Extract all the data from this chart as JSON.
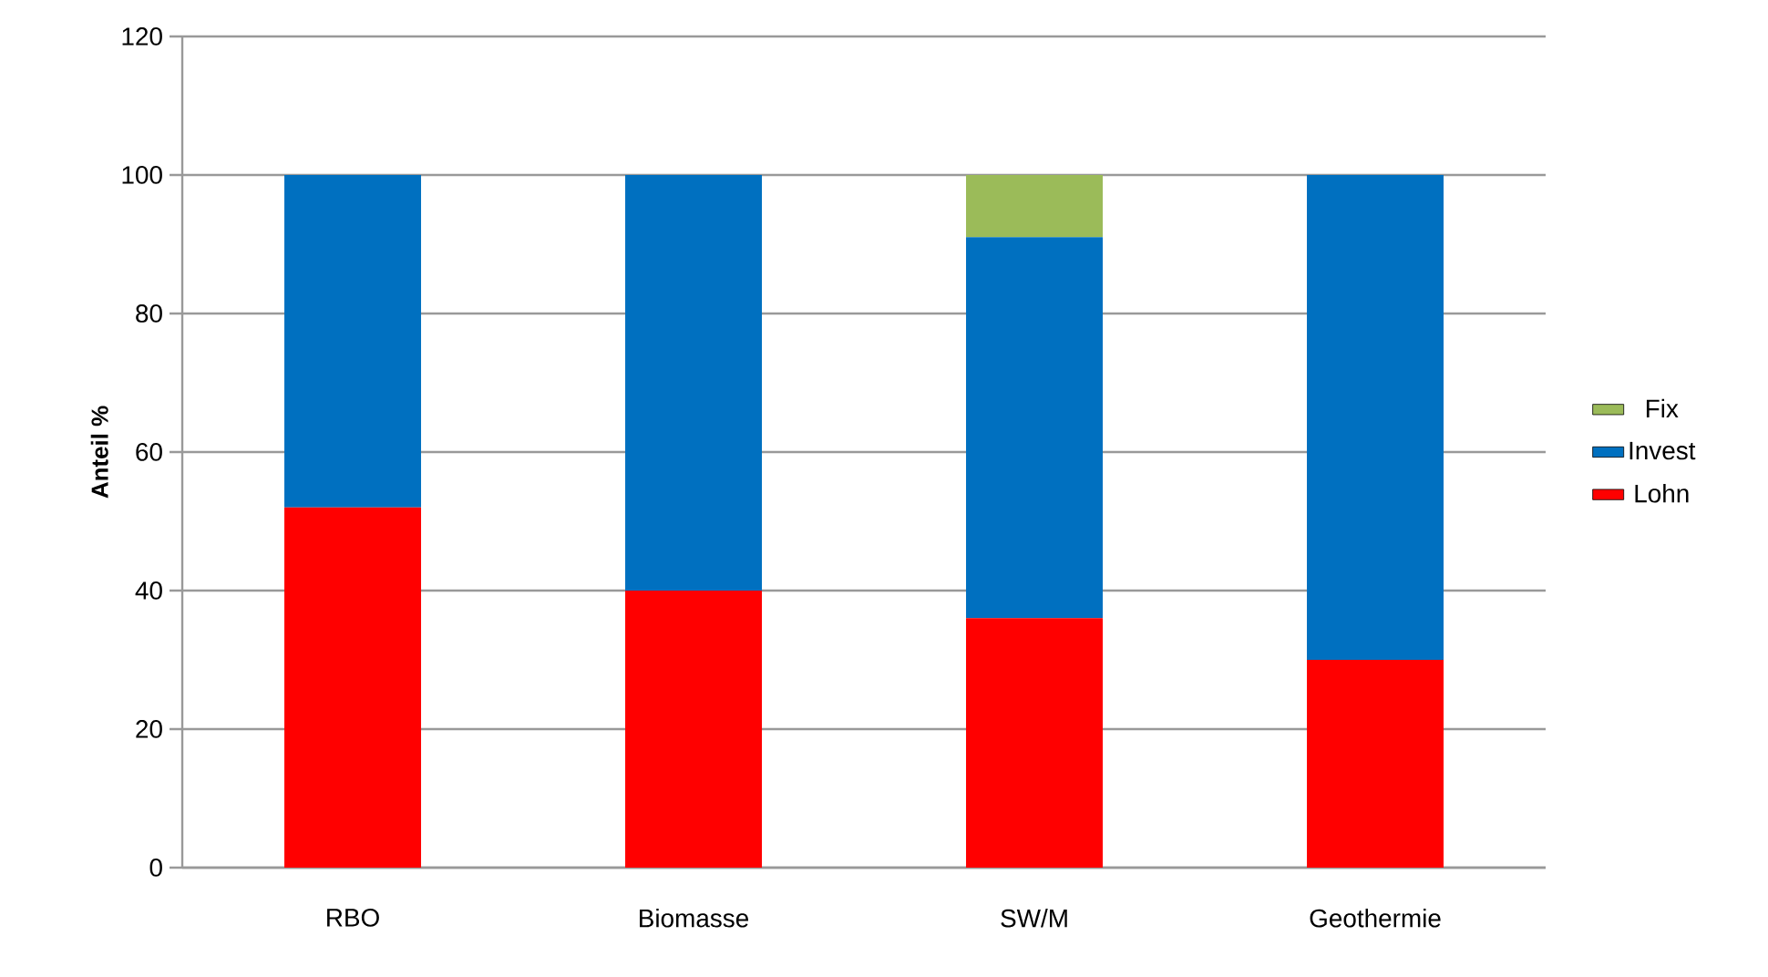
{
  "chart_data": {
    "type": "bar",
    "stacked": true,
    "ylabel": "Anteil %",
    "categories": [
      "RBO",
      "Biomasse",
      "SW/M",
      "Geothermie"
    ],
    "series": [
      {
        "name": "Lohn",
        "color": "#ff0000",
        "values": [
          52,
          40,
          36,
          30
        ]
      },
      {
        "name": "Invest",
        "color": "#0070c0",
        "values": [
          48,
          60,
          55,
          70
        ]
      },
      {
        "name": "Fix",
        "color": "#9bbb59",
        "values": [
          0,
          0,
          9,
          0
        ]
      }
    ],
    "ylim": [
      0,
      120
    ],
    "yticks": [
      0,
      20,
      40,
      60,
      80,
      100,
      120
    ],
    "grid": "y",
    "legend": "right"
  }
}
